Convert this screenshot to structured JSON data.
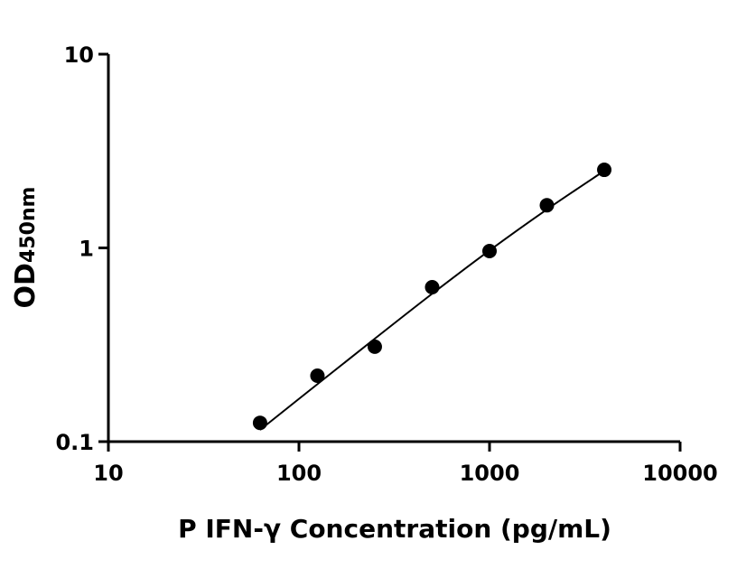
{
  "chart_data": {
    "type": "scatter",
    "title": "",
    "xlabel": "P IFN-γ Concentration (pg/mL)",
    "ylabel_main": "OD",
    "ylabel_sub": "450nm",
    "x_scale": "log",
    "y_scale": "log",
    "xlim": [
      10,
      10000
    ],
    "ylim": [
      0.1,
      10
    ],
    "x_ticks": [
      10,
      100,
      1000,
      10000
    ],
    "x_tick_labels": [
      "10",
      "100",
      "1000",
      "10000"
    ],
    "y_ticks": [
      0.1,
      1,
      10
    ],
    "y_tick_labels": [
      "0.1",
      "1",
      "10"
    ],
    "grid": false,
    "legend": "none",
    "points": {
      "x": [
        62.5,
        125,
        250,
        500,
        1000,
        2000,
        4000
      ],
      "y": [
        0.125,
        0.219,
        0.309,
        0.627,
        0.963,
        1.66,
        2.53
      ]
    },
    "fit_curve": {
      "x": [
        62.5,
        125,
        250,
        500,
        1000,
        2000,
        4000
      ],
      "y": [
        0.115,
        0.198,
        0.34,
        0.58,
        0.97,
        1.58,
        2.5
      ]
    },
    "colors": {
      "marker": "#000000",
      "line": "#000000"
    }
  }
}
